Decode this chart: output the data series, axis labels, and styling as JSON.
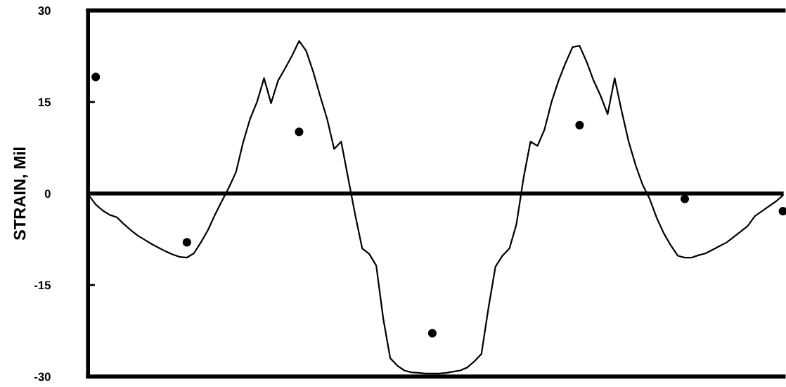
{
  "chart_data": {
    "type": "line",
    "ylabel": "STRAIN, Mil",
    "categories": [
      null,
      null,
      null,
      null,
      null,
      null,
      null,
      null,
      null,
      null,
      null,
      null,
      null,
      null,
      null,
      null,
      null,
      null,
      null,
      null,
      null,
      null,
      null,
      null,
      null,
      null,
      null,
      null,
      null,
      null,
      null,
      null,
      null,
      null,
      null,
      null,
      null,
      null,
      null,
      null,
      null,
      null,
      null,
      null,
      null,
      null,
      null,
      null,
      null,
      null,
      null,
      null,
      null,
      null,
      null,
      null,
      null,
      null,
      null,
      null,
      null,
      null,
      null,
      null,
      null,
      null,
      null,
      null,
      null,
      null,
      null,
      null,
      null,
      null,
      null,
      null,
      null,
      null,
      null,
      null,
      null,
      null,
      null,
      null,
      null,
      null,
      null,
      null,
      null,
      null,
      null,
      null,
      null,
      null,
      null,
      null,
      null,
      null,
      null,
      null
    ],
    "series": [
      {
        "color": "#000000",
        "values": [
          -0.3,
          -1.8,
          -2.8,
          -3.5,
          -3.9,
          -5,
          -6,
          -6.9,
          -7.6,
          -8.3,
          -8.9,
          -9.5,
          -10,
          -10.4,
          -10.5,
          -9.8,
          -8,
          -6,
          -3.5,
          -1.2,
          1,
          3.5,
          8.3,
          12.2,
          15,
          18.9,
          14.8,
          18.5,
          20.5,
          22.6,
          25,
          23.4,
          20,
          16,
          12.2,
          7.3,
          8.5,
          2.5,
          -3.5,
          -9,
          -9.9,
          -11.8,
          -20.5,
          -27,
          -28.2,
          -29,
          -29.3,
          -29.4,
          -29.5,
          -29.5,
          -29.5,
          -29.4,
          -29.2,
          -29,
          -28.5,
          -27.5,
          -26.3,
          -18.8,
          -12,
          -10.2,
          -9,
          -5,
          2.5,
          8.5,
          7.8,
          10.5,
          15,
          18.5,
          21.4,
          24,
          24.2,
          21.6,
          18.5,
          16,
          13,
          18.9,
          13.5,
          8.5,
          4.6,
          1.4,
          -0.9,
          -4,
          -6.5,
          -8.5,
          -10.2,
          -10.5,
          -10.5,
          -10.1,
          -9.8,
          -9.2,
          -8.6,
          -8,
          -7.1,
          -6.2,
          -5.3,
          -3.7,
          -2.9,
          -2.1,
          -1.3,
          -0.3
        ]
      },
      {
        "type": "scatter",
        "color": "#000000",
        "marker": "circle",
        "values": [
          null,
          19.1,
          null,
          null,
          null,
          null,
          null,
          null,
          null,
          null,
          null,
          null,
          null,
          null,
          -8,
          null,
          null,
          null,
          null,
          null,
          null,
          null,
          null,
          null,
          null,
          null,
          null,
          null,
          null,
          null,
          10.1,
          null,
          null,
          null,
          null,
          null,
          null,
          null,
          null,
          null,
          null,
          null,
          null,
          null,
          null,
          null,
          null,
          null,
          null,
          -22.9,
          null,
          null,
          null,
          null,
          null,
          null,
          null,
          null,
          null,
          null,
          null,
          null,
          null,
          null,
          null,
          null,
          null,
          null,
          null,
          null,
          11.2,
          null,
          null,
          null,
          null,
          null,
          null,
          null,
          null,
          null,
          null,
          null,
          null,
          null,
          null,
          -0.9,
          null,
          null,
          null,
          null,
          null,
          null,
          null,
          null,
          null,
          null,
          null,
          null,
          null,
          -2.9
        ]
      }
    ],
    "ylim": [
      -30,
      30
    ],
    "yticks": [
      -30,
      -15,
      0,
      15,
      30
    ],
    "ref_lines": [
      {
        "axis": "y",
        "value": 0,
        "color": "#000000"
      }
    ],
    "grid": false,
    "legend": false
  }
}
